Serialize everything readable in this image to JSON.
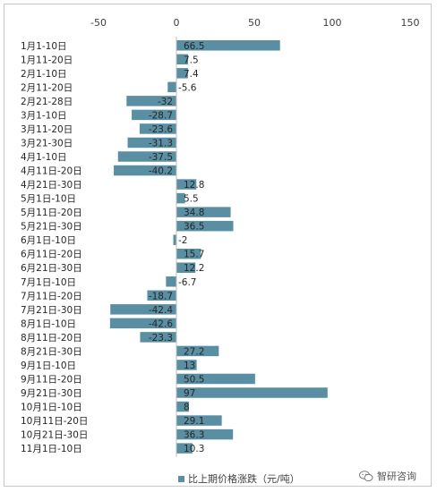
{
  "chart_data": {
    "type": "bar",
    "orientation": "horizontal",
    "categories": [
      "1月1-10日",
      "1月11-20日",
      "2月1-10日",
      "2月11-20日",
      "2月21-28日",
      "3月1-10日",
      "3月11-20日",
      "3月21-30日",
      "4月1-10日",
      "4月11日-20日",
      "4月21日-30日",
      "5月1日-10日",
      "5月11日-20日",
      "5月21日-30日",
      "6月1日-10日",
      "6月11日-20日",
      "6月21日-30日",
      "7月1日-10日",
      "7月11日-20日",
      "7月21日-30日",
      "8月1日-10日",
      "8月11日-20日",
      "8月21日-30日",
      "9月1日-10日",
      "9月11日-20日",
      "9月21日-30日",
      "10月1日-10日",
      "10月11日-20日",
      "10月21日-30日",
      "11月1日-10日"
    ],
    "series": [
      {
        "name": "比上期价格涨跌（元/吨）",
        "values": [
          66.5,
          7.5,
          7.4,
          -5.6,
          -32,
          -28.7,
          -23.6,
          -31.3,
          -37.5,
          -40.2,
          12.8,
          5.5,
          34.8,
          36.5,
          -2,
          15.7,
          12.2,
          -6.7,
          -18.7,
          -42.4,
          -42.6,
          -23.3,
          27.2,
          13,
          50.5,
          97,
          8,
          29.1,
          36.3,
          10.3
        ],
        "labels": [
          "66.5",
          "7.5",
          "7.4",
          "-5.6",
          "-32",
          "-28.7",
          "-23.6",
          "-31.3",
          "-37.5",
          "-40.2",
          "12.8",
          "5.5",
          "34.8",
          "36.5",
          "-2",
          "15.7",
          "12.2",
          "-6.7",
          "-18.7",
          "-42.4",
          "-42.6",
          "-23.3",
          "27.2",
          "13",
          "50.5",
          "97",
          "8",
          "29.1",
          "36.3",
          "10.3"
        ],
        "color": "#5a8fa3"
      }
    ],
    "xlim": [
      -50,
      150
    ],
    "ticks": [
      -50,
      0,
      50,
      100,
      150
    ],
    "tick_labels": [
      "-50",
      "0",
      "50",
      "100",
      "150"
    ],
    "grid": false,
    "axis_position": "top",
    "legend_position": "bottom"
  },
  "watermark": {
    "text": "智研咨询"
  }
}
